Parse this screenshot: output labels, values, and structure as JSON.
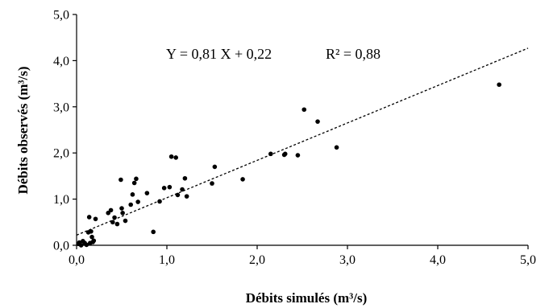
{
  "chart_data": {
    "type": "scatter",
    "xlabel": "Débits simulés (m³/s)",
    "ylabel": "Débits observés (m³/s)",
    "xlim": [
      0,
      5
    ],
    "ylim": [
      0,
      5
    ],
    "xticks": [
      "0,0",
      "1,0",
      "2,0",
      "3,0",
      "4,0",
      "5,0"
    ],
    "yticks": [
      "0,0",
      "1,0",
      "2,0",
      "3,0",
      "4,0",
      "5,0"
    ],
    "grid": false,
    "equation": "Y = 0,81 X + 0,22",
    "r_squared": "R² = 0,88",
    "trendline": {
      "slope": 0.81,
      "intercept": 0.22,
      "x_range": [
        0,
        5
      ]
    },
    "points": [
      [
        0.02,
        0.03
      ],
      [
        0.03,
        0.06
      ],
      [
        0.05,
        0.0
      ],
      [
        0.07,
        0.09
      ],
      [
        0.09,
        0.05
      ],
      [
        0.11,
        0.01
      ],
      [
        0.13,
        0.28
      ],
      [
        0.14,
        0.61
      ],
      [
        0.15,
        0.05
      ],
      [
        0.16,
        0.3
      ],
      [
        0.17,
        0.18
      ],
      [
        0.18,
        0.07
      ],
      [
        0.19,
        0.1
      ],
      [
        0.21,
        0.57
      ],
      [
        0.35,
        0.7
      ],
      [
        0.38,
        0.76
      ],
      [
        0.4,
        0.5
      ],
      [
        0.42,
        0.6
      ],
      [
        0.45,
        0.46
      ],
      [
        0.5,
        0.8
      ],
      [
        0.51,
        0.7
      ],
      [
        0.49,
        1.42
      ],
      [
        0.54,
        0.53
      ],
      [
        0.6,
        0.88
      ],
      [
        0.62,
        1.1
      ],
      [
        0.64,
        1.35
      ],
      [
        0.66,
        1.44
      ],
      [
        0.68,
        0.94
      ],
      [
        0.78,
        1.13
      ],
      [
        0.85,
        0.29
      ],
      [
        0.92,
        0.95
      ],
      [
        0.97,
        1.24
      ],
      [
        1.03,
        1.26
      ],
      [
        1.05,
        1.92
      ],
      [
        1.1,
        1.9
      ],
      [
        1.12,
        1.09
      ],
      [
        1.17,
        1.21
      ],
      [
        1.2,
        1.45
      ],
      [
        1.22,
        1.06
      ],
      [
        1.5,
        1.34
      ],
      [
        1.53,
        1.7
      ],
      [
        1.84,
        1.43
      ],
      [
        2.15,
        1.98
      ],
      [
        2.3,
        1.96
      ],
      [
        2.31,
        1.98
      ],
      [
        2.45,
        1.95
      ],
      [
        2.52,
        2.94
      ],
      [
        2.67,
        2.68
      ],
      [
        2.88,
        2.12
      ],
      [
        4.68,
        3.48
      ]
    ]
  }
}
